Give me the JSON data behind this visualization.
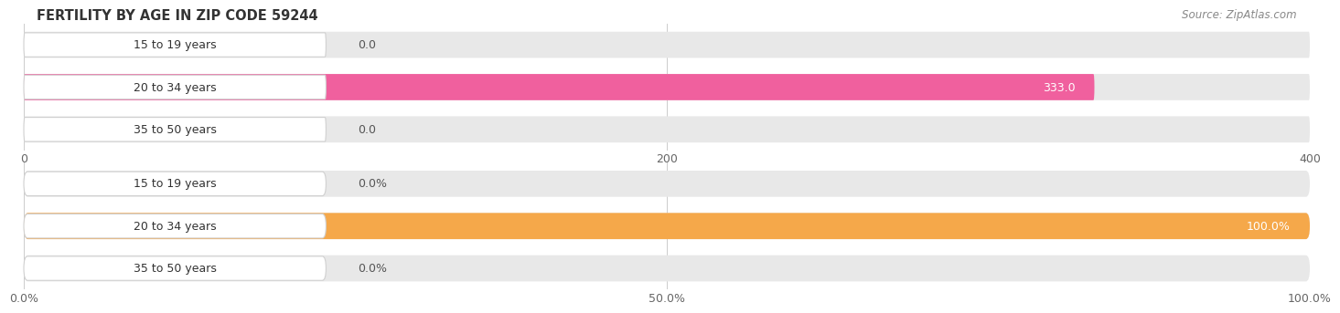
{
  "title": "FERTILITY BY AGE IN ZIP CODE 59244",
  "source_text": "Source: ZipAtlas.com",
  "top_chart": {
    "categories": [
      "15 to 19 years",
      "20 to 34 years",
      "35 to 50 years"
    ],
    "values": [
      0.0,
      333.0,
      0.0
    ],
    "bar_color": "#f0609e",
    "bar_bg_color": "#e8e8e8",
    "bar_label_bg": "#ffffff",
    "xlim": [
      0,
      400.0
    ],
    "xticks": [
      0.0,
      200.0,
      400.0
    ],
    "value_labels": [
      "0.0",
      "333.0",
      "0.0"
    ]
  },
  "bottom_chart": {
    "categories": [
      "15 to 19 years",
      "20 to 34 years",
      "35 to 50 years"
    ],
    "values": [
      0.0,
      100.0,
      0.0
    ],
    "bar_color": "#f5a84a",
    "bar_bg_color": "#e8e8e8",
    "bar_label_bg": "#ffffff",
    "xlim": [
      0,
      100.0
    ],
    "xticks": [
      0.0,
      50.0,
      100.0
    ],
    "value_labels": [
      "0.0%",
      "100.0%",
      "0.0%"
    ],
    "xticklabels": [
      "0.0%",
      "50.0%",
      "100.0%"
    ]
  },
  "bg_color": "#ffffff",
  "label_font_size": 9,
  "tick_font_size": 9,
  "title_font_size": 10.5,
  "bar_height": 0.62,
  "grid_color": "#cccccc"
}
